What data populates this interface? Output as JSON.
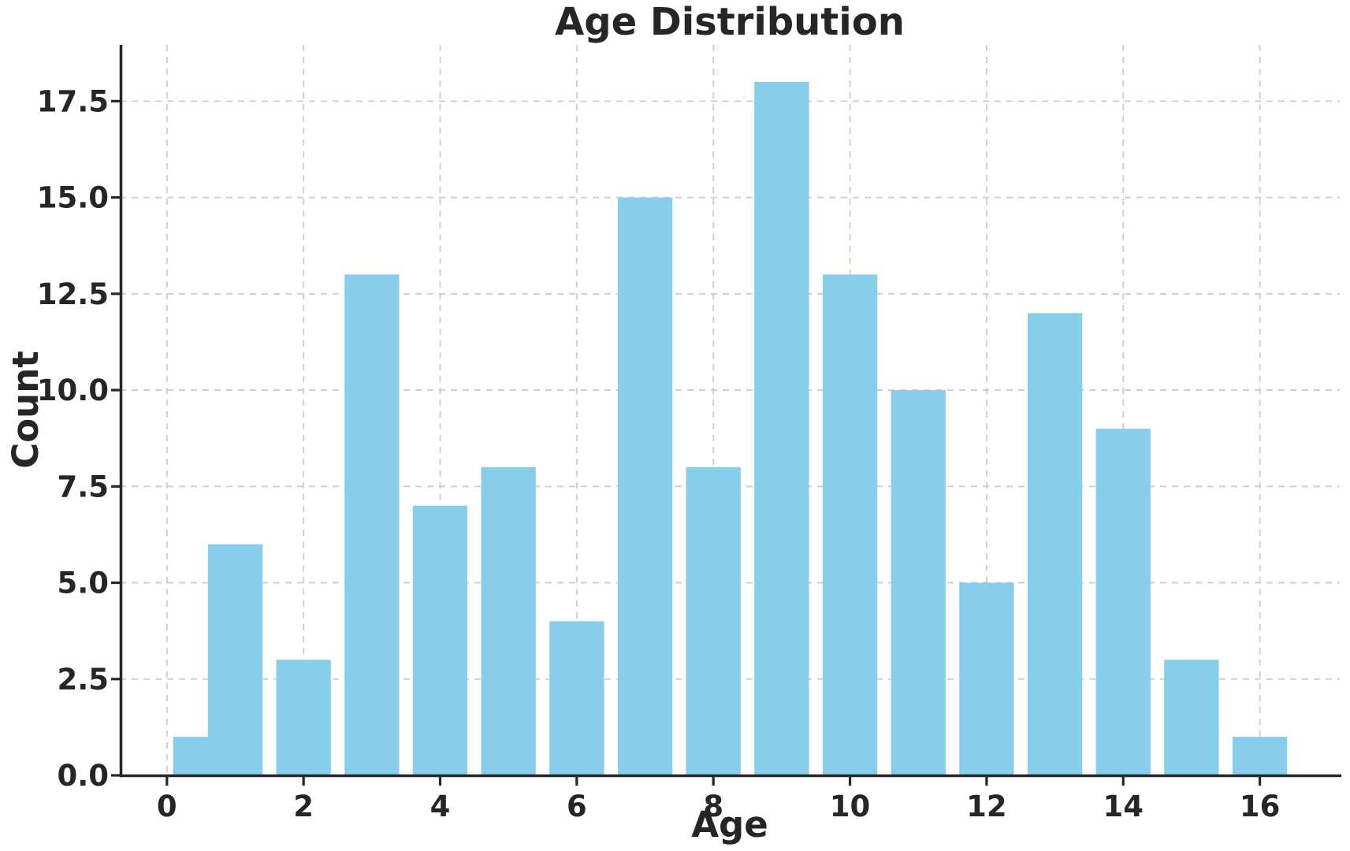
{
  "title": "Age Distribution",
  "chart_data": {
    "type": "bar",
    "title": "Age Distribution",
    "xlabel": "Age",
    "ylabel": "Count",
    "categories": [
      0,
      1,
      2,
      3,
      4,
      5,
      6,
      7,
      8,
      9,
      10,
      11,
      12,
      13,
      14,
      15,
      16
    ],
    "values": [
      1,
      6,
      3,
      13,
      7,
      8,
      4,
      15,
      8,
      18,
      13,
      10,
      5,
      12,
      9,
      3,
      1
    ],
    "bar_color": "#87CEEB",
    "bar_width": 0.8,
    "first_bar_span": [
      0.09,
      0.62
    ],
    "x_ticks": [
      0,
      2,
      4,
      6,
      8,
      10,
      12,
      14,
      16
    ],
    "x_tick_labels": [
      "0",
      "2",
      "4",
      "6",
      "8",
      "10",
      "12",
      "14",
      "16"
    ],
    "y_ticks": [
      0,
      2.5,
      5,
      7.5,
      10,
      12.5,
      15,
      17.5
    ],
    "y_tick_labels": [
      "0.0",
      "2.5",
      "5.0",
      "7.5",
      "10.0",
      "12.5",
      "15.0",
      "17.5"
    ],
    "xlim": [
      -0.69,
      17.17
    ],
    "ylim": [
      0,
      18.96
    ],
    "grid": true,
    "grid_style": "dashed",
    "legend": "none",
    "text_color": "#262626",
    "grid_color": "#cccccc",
    "background_color": "#ffffff"
  }
}
